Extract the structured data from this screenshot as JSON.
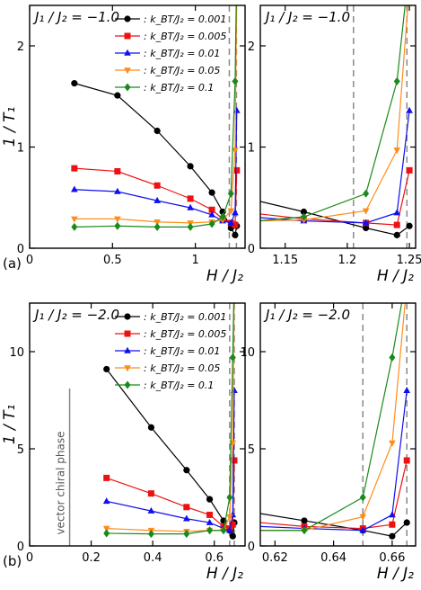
{
  "chart_data": [
    {
      "type": "line",
      "panel_label": "(a)",
      "title": "J₁ / J₂ = −1.0",
      "xlabel": "H / J₂",
      "ylabel": "1 / T₁",
      "xlim": [
        0,
        1.3
      ],
      "ylim": [
        0,
        2.4
      ],
      "xticks": [
        0,
        0.5,
        1
      ],
      "yticks": [
        0,
        1,
        2
      ],
      "legend_position": "top-right",
      "dashed_vlines": [
        1.205,
        1.248
      ],
      "series": [
        {
          "name": ": k_BT/J₂ = 0.001",
          "color": "#000000",
          "marker": "circle",
          "x": [
            0.27,
            0.53,
            0.77,
            0.97,
            1.1,
            1.165,
            1.215,
            1.24,
            1.25
          ],
          "y": [
            1.63,
            1.51,
            1.16,
            0.81,
            0.55,
            0.36,
            0.2,
            0.13,
            0.22
          ]
        },
        {
          "name": ": k_BT/J₂ = 0.005",
          "color": "#ee1111",
          "marker": "square",
          "x": [
            0.27,
            0.53,
            0.77,
            0.97,
            1.1,
            1.165,
            1.215,
            1.24,
            1.25
          ],
          "y": [
            0.79,
            0.76,
            0.62,
            0.49,
            0.38,
            0.29,
            0.25,
            0.23,
            0.77
          ]
        },
        {
          "name": ": k_BT/J₂ = 0.01",
          "color": "#1010ee",
          "marker": "triangle-up",
          "x": [
            0.27,
            0.53,
            0.77,
            0.97,
            1.1,
            1.165,
            1.215,
            1.24,
            1.25
          ],
          "y": [
            0.58,
            0.56,
            0.47,
            0.4,
            0.33,
            0.27,
            0.25,
            0.35,
            1.36
          ]
        },
        {
          "name": ": k_BT/J₂ = 0.05",
          "color": "#ff8c1a",
          "marker": "triangle-down",
          "x": [
            0.27,
            0.53,
            0.77,
            0.97,
            1.1,
            1.165,
            1.215,
            1.24,
            1.25
          ],
          "y": [
            0.29,
            0.29,
            0.26,
            0.25,
            0.26,
            0.28,
            0.37,
            0.97,
            2.6
          ]
        },
        {
          "name": ": k_BT/J₂ = 0.1",
          "color": "#1a8a1a",
          "marker": "diamond",
          "x": [
            0.27,
            0.53,
            0.77,
            0.97,
            1.1,
            1.165,
            1.215,
            1.24,
            1.25
          ],
          "y": [
            0.21,
            0.22,
            0.21,
            0.21,
            0.24,
            0.31,
            0.54,
            1.65,
            2.8
          ]
        }
      ]
    },
    {
      "type": "line",
      "title": "J₁ / J₂ = −1.0",
      "xlabel": "H / J₂",
      "xlim": [
        1.13,
        1.255
      ],
      "ylim": [
        0,
        2.4
      ],
      "xticks": [
        1.15,
        1.2,
        1.25
      ],
      "xtick_labels": [
        "1.15",
        "1.2",
        "1.25"
      ],
      "yticks": [
        0,
        1,
        2
      ],
      "dashed_vlines": [
        1.205,
        1.248
      ],
      "series_ref": "same as panel (a) main"
    },
    {
      "type": "line",
      "panel_label": "(b)",
      "title": "J₁ / J₂ = −2.0",
      "xlabel": "H / J₂",
      "ylabel": "1 / T₁",
      "xlim": [
        0,
        0.7
      ],
      "ylim": [
        0,
        12.5
      ],
      "xticks": [
        0,
        0.2,
        0.4,
        0.6
      ],
      "yticks": [
        0,
        5,
        10
      ],
      "legend_position": "top-right",
      "solid_vline": 0.13,
      "annotation": "vector chiral phase",
      "dashed_vlines": [
        0.65,
        0.665
      ],
      "series": [
        {
          "name": ": k_BT/J₂ = 0.001",
          "color": "#000000",
          "marker": "circle",
          "x": [
            0.25,
            0.395,
            0.51,
            0.585,
            0.63,
            0.65,
            0.66,
            0.665
          ],
          "y": [
            9.1,
            6.1,
            3.9,
            2.4,
            1.3,
            0.8,
            0.5,
            1.2
          ]
        },
        {
          "name": ": k_BT/J₂ = 0.005",
          "color": "#ee1111",
          "marker": "square",
          "x": [
            0.25,
            0.395,
            0.51,
            0.585,
            0.63,
            0.65,
            0.66,
            0.665
          ],
          "y": [
            3.5,
            2.7,
            2.0,
            1.6,
            1.0,
            0.9,
            1.1,
            4.4
          ]
        },
        {
          "name": ": k_BT/J₂ = 0.01",
          "color": "#1010ee",
          "marker": "triangle-up",
          "x": [
            0.25,
            0.395,
            0.51,
            0.585,
            0.63,
            0.65,
            0.66,
            0.665
          ],
          "y": [
            2.3,
            1.8,
            1.4,
            1.2,
            0.9,
            0.8,
            1.6,
            8.0
          ]
        },
        {
          "name": ": k_BT/J₂ = 0.05",
          "color": "#ff8c1a",
          "marker": "triangle-down",
          "x": [
            0.25,
            0.395,
            0.51,
            0.585,
            0.63,
            0.65,
            0.66,
            0.665
          ],
          "y": [
            0.9,
            0.8,
            0.75,
            0.8,
            0.8,
            1.5,
            5.3,
            13.5
          ]
        },
        {
          "name": ": k_BT/J₂ = 0.1",
          "color": "#1a8a1a",
          "marker": "diamond",
          "x": [
            0.25,
            0.395,
            0.51,
            0.585,
            0.63,
            0.65,
            0.66,
            0.665
          ],
          "y": [
            0.65,
            0.62,
            0.62,
            0.8,
            0.8,
            2.5,
            9.7,
            14.0
          ]
        }
      ]
    },
    {
      "type": "line",
      "title": "J₁ / J₂ = −2.0",
      "xlabel": "H / J₂",
      "xlim": [
        0.615,
        0.668
      ],
      "ylim": [
        0,
        12.5
      ],
      "xticks": [
        0.62,
        0.64,
        0.66
      ],
      "xtick_labels": [
        "0.62",
        "0.64",
        "0.66"
      ],
      "yticks": [
        0,
        5,
        10
      ],
      "dashed_vlines": [
        0.65,
        0.665
      ],
      "series_ref": "same as panel (b) main"
    }
  ]
}
